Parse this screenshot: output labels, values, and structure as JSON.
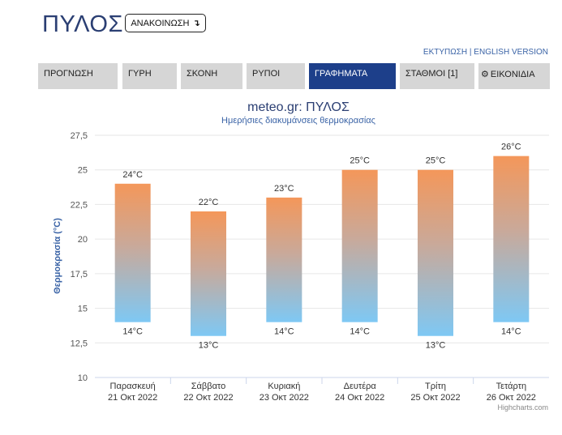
{
  "site": {
    "title": "ΠΥΛΟΣ",
    "announcement_label": "ΑΝΑΚΟΙΝΩΣΗ",
    "announcement_icon": "arrow-down-right-icon",
    "print_link": "ΕΚΤΥΠΩΣΗ",
    "link_separator": "|",
    "english_link": "ENGLISH VERSION"
  },
  "nav": {
    "tabs": [
      {
        "label": "ΠΡΟΓΝΩΣΗ",
        "active": false
      },
      {
        "label": "ΓΥΡΗ",
        "active": false
      },
      {
        "label": "ΣΚΟΝΗ",
        "active": false
      },
      {
        "label": "ΡΥΠΟΙ",
        "active": false
      },
      {
        "label": "ΓΡΑΦΗΜΑΤΑ",
        "active": true
      },
      {
        "label": "ΣΤΑΘΜΟΙ [1]",
        "active": false
      },
      {
        "label": "ΕΙΚΟΝΙΔΙΑ",
        "active": false,
        "icon": "gear-icon"
      }
    ],
    "active_color": "#1d3f8a",
    "inactive_color": "#d6d6d6"
  },
  "chart_data": {
    "type": "bar",
    "subtype": "columnrange",
    "title": "meteo.gr: ΠΥΛΟΣ",
    "subtitle": "Ημερήσιες διακυμάνσεις θερμοκρασίας",
    "ylabel": "Θερμοκρασία (°C)",
    "ylim": [
      10,
      27.5
    ],
    "y_ticks": [
      "10",
      "12,5",
      "15",
      "17,5",
      "20",
      "22,5",
      "25",
      "27,5"
    ],
    "y_tick_values": [
      10,
      12.5,
      15,
      17.5,
      20,
      22.5,
      25,
      27.5
    ],
    "grid": true,
    "categories": [
      {
        "day": "Παρασκευή",
        "date": "21 Οκτ 2022"
      },
      {
        "day": "Σάββατο",
        "date": "22 Οκτ 2022"
      },
      {
        "day": "Κυριακή",
        "date": "23 Οκτ 2022"
      },
      {
        "day": "Δευτέρα",
        "date": "24 Οκτ 2022"
      },
      {
        "day": "Τρίτη",
        "date": "25 Οκτ 2022"
      },
      {
        "day": "Τετάρτη",
        "date": "26 Οκτ 2022"
      }
    ],
    "series": [
      {
        "low": [
          14,
          13,
          14,
          14,
          13,
          14
        ],
        "high": [
          24,
          22,
          23,
          25,
          25,
          26
        ]
      }
    ],
    "low_labels": [
      "14°C",
      "13°C",
      "14°C",
      "14°C",
      "13°C",
      "14°C"
    ],
    "high_labels": [
      "24°C",
      "22°C",
      "23°C",
      "25°C",
      "25°C",
      "26°C"
    ],
    "colors": {
      "warm": "#f4975a",
      "cool": "#7ec8f4",
      "title": "#2b3f73",
      "subtitle": "#3a63a6",
      "axis_label": "#3a63a6"
    },
    "credit": "Highcharts.com"
  }
}
